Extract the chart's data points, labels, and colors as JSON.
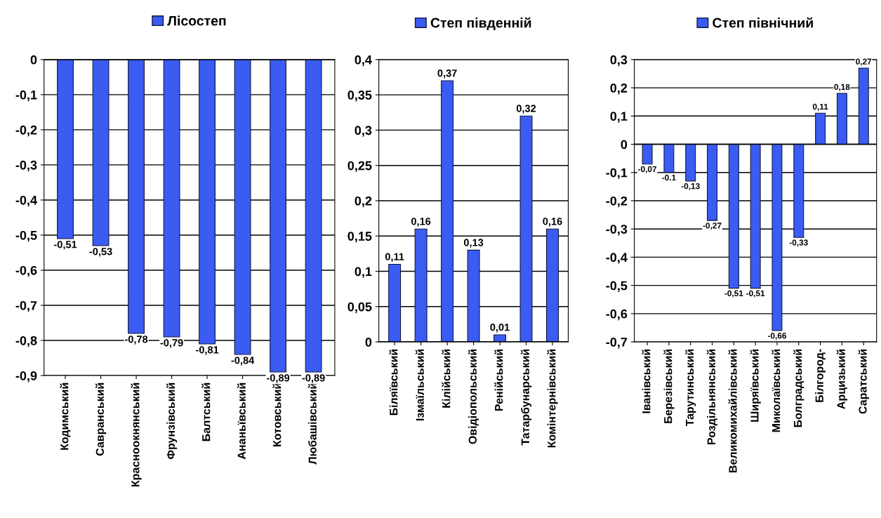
{
  "chart_data": [
    {
      "type": "bar",
      "categories": [
        "Кодимський",
        "Савранський",
        "Красноокнянський",
        "Фрунзівський",
        "Балтський",
        "Ананьївський",
        "Котовський",
        "Любашівський"
      ],
      "series": [
        {
          "name": "Лісостеп",
          "color": "#3b5cf2",
          "values": [
            -0.51,
            -0.53,
            -0.78,
            -0.79,
            -0.81,
            -0.84,
            -0.89,
            -0.89
          ],
          "value_labels": [
            "-0,51",
            "-0,53",
            "-0,78",
            "-0,79",
            "-0,81",
            "-0,84",
            "-0,89",
            "-0,89"
          ]
        }
      ],
      "ylim": [
        -0.9,
        0
      ],
      "yticks": [
        {
          "value": -0.9,
          "label": "-0,9"
        },
        {
          "value": -0.8,
          "label": "-0,8"
        },
        {
          "value": -0.7,
          "label": "-0,7"
        },
        {
          "value": -0.6,
          "label": "-0,6"
        },
        {
          "value": -0.5,
          "label": "-0,5"
        },
        {
          "value": -0.4,
          "label": "-0,4"
        },
        {
          "value": -0.3,
          "label": "-0,3"
        },
        {
          "value": -0.2,
          "label": "-0,2"
        },
        {
          "value": -0.1,
          "label": "-0,1"
        },
        0
      ],
      "grid": "y",
      "legend": "top"
    },
    {
      "type": "bar",
      "categories": [
        "Біляївський",
        "Ізмаїльський",
        "Кілійський",
        "Овідіопольський",
        "Ренійський",
        "Татарбунарський",
        "Комінтернівський"
      ],
      "series": [
        {
          "name": "Степ південній",
          "color": "#3b5cf2",
          "values": [
            0.11,
            0.16,
            0.37,
            0.13,
            0.01,
            0.32,
            0.16
          ],
          "value_labels": [
            "0,11",
            "0,16",
            "0,37",
            "0,13",
            "0,01",
            "0,32",
            "0,16"
          ]
        }
      ],
      "ylim": [
        0,
        0.4
      ],
      "yticks": [
        0,
        {
          "value": 0.05,
          "label": "0,05"
        },
        {
          "value": 0.1,
          "label": "0,1"
        },
        {
          "value": 0.15,
          "label": "0,15"
        },
        {
          "value": 0.2,
          "label": "0,2"
        },
        {
          "value": 0.25,
          "label": "0,25"
        },
        {
          "value": 0.3,
          "label": "0,3"
        },
        {
          "value": 0.35,
          "label": "0,35"
        },
        {
          "value": 0.4,
          "label": "0,4"
        }
      ],
      "grid": "y",
      "legend": "top"
    },
    {
      "type": "bar",
      "categories": [
        "Іванівський",
        "Березівський",
        "Тарутинський",
        "Роздільнянський",
        "Великомихайлівський",
        "Ширяївський",
        "Миколаївський",
        "Болградський",
        "Білгород-",
        "Арцизький",
        "Саратський"
      ],
      "series": [
        {
          "name": "Степ північний",
          "color": "#3b5cf2",
          "values": [
            -0.07,
            -0.1,
            -0.13,
            -0.27,
            -0.51,
            -0.51,
            -0.66,
            -0.33,
            0.11,
            0.18,
            0.27
          ],
          "value_labels": [
            "-0,07",
            "-0.1",
            "-0,13",
            "-0,27",
            "-0,51",
            "-0,51",
            "-0,66",
            "-0,33",
            "0,11",
            "0,18",
            "0,27"
          ]
        }
      ],
      "ylim": [
        -0.7,
        0.3
      ],
      "yticks": [
        {
          "value": -0.7,
          "label": "-0,7"
        },
        {
          "value": -0.6,
          "label": "-0,6"
        },
        {
          "value": -0.5,
          "label": "-0,5"
        },
        {
          "value": -0.4,
          "label": "-0,4"
        },
        {
          "value": -0.3,
          "label": "-0,3"
        },
        {
          "value": -0.2,
          "label": "-0,2"
        },
        {
          "value": -0.1,
          "label": "-0,1"
        },
        0,
        {
          "value": 0.1,
          "label": "0,1"
        },
        {
          "value": 0.2,
          "label": "0,2"
        },
        {
          "value": 0.3,
          "label": "0,3"
        }
      ],
      "grid": "y",
      "legend": "top"
    }
  ]
}
